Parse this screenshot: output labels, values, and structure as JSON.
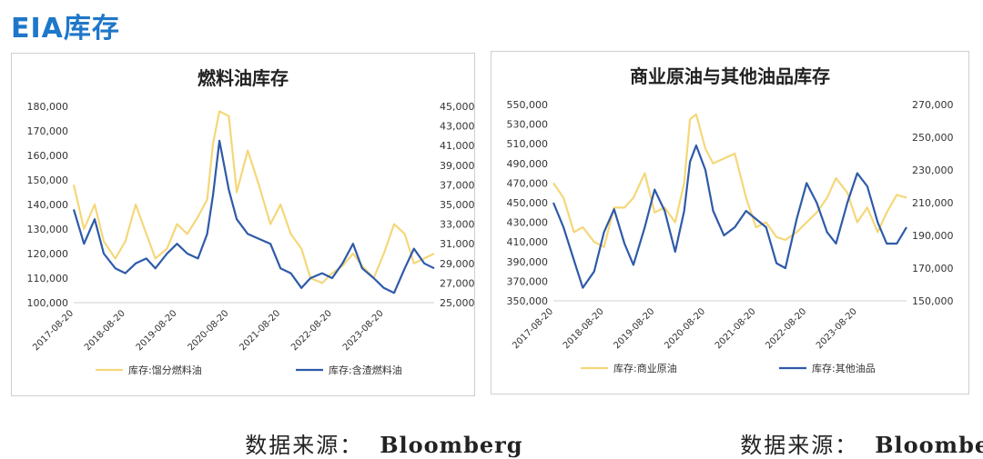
{
  "page": {
    "title": "EIA库存"
  },
  "source_left": {
    "label": "数据来源：",
    "value": "Bloomberg"
  },
  "source_right": {
    "label": "数据来源：",
    "value": "Bloomberg"
  },
  "colors": {
    "title": "#1f77c9",
    "series_yellow": "#f5d77a",
    "series_blue": "#2e5aa8"
  },
  "chart_data": [
    {
      "type": "line",
      "title": "燃料油库存",
      "x_tick_labels": [
        "2017-08-20",
        "2018-08-20",
        "2019-08-20",
        "2020-08-20",
        "2021-08-20",
        "2022-08-20",
        "2023-08-20"
      ],
      "x_range": [
        "2017-08-20",
        "2024-08-10"
      ],
      "y_left": {
        "range": [
          100000,
          180000
        ],
        "ticks": [
          "100,000",
          "110,000",
          "120,000",
          "130,000",
          "140,000",
          "150,000",
          "160,000",
          "170,000",
          "180,000"
        ]
      },
      "y_right": {
        "range": [
          25000,
          45000
        ],
        "ticks": [
          "25,000",
          "27,000",
          "29,000",
          "31,000",
          "33,000",
          "35,000",
          "37,000",
          "39,000",
          "41,000",
          "43,000",
          "45,000"
        ]
      },
      "grid": false,
      "legend_position": "bottom",
      "series": [
        {
          "name": "库存:馏分燃料油",
          "axis": "left",
          "color": "#f5d77a",
          "points": [
            [
              "2017-08-20",
              148000
            ],
            [
              "2017-11-01",
              130000
            ],
            [
              "2018-01-15",
              140000
            ],
            [
              "2018-03-20",
              125000
            ],
            [
              "2018-06-10",
              118000
            ],
            [
              "2018-08-20",
              125000
            ],
            [
              "2018-11-01",
              140000
            ],
            [
              "2019-01-15",
              128000
            ],
            [
              "2019-03-20",
              118000
            ],
            [
              "2019-06-10",
              122000
            ],
            [
              "2019-08-20",
              132000
            ],
            [
              "2019-11-01",
              128000
            ],
            [
              "2020-01-15",
              135000
            ],
            [
              "2020-03-20",
              142000
            ],
            [
              "2020-05-01",
              165000
            ],
            [
              "2020-06-15",
              178000
            ],
            [
              "2020-08-20",
              176000
            ],
            [
              "2020-10-15",
              145000
            ],
            [
              "2021-01-01",
              162000
            ],
            [
              "2021-03-20",
              148000
            ],
            [
              "2021-06-10",
              132000
            ],
            [
              "2021-08-20",
              140000
            ],
            [
              "2021-11-01",
              128000
            ],
            [
              "2022-01-15",
              122000
            ],
            [
              "2022-03-20",
              110000
            ],
            [
              "2022-06-10",
              108000
            ],
            [
              "2022-08-20",
              112000
            ],
            [
              "2022-11-01",
              115000
            ],
            [
              "2023-01-15",
              120000
            ],
            [
              "2023-03-20",
              115000
            ],
            [
              "2023-06-10",
              110000
            ],
            [
              "2023-08-20",
              120000
            ],
            [
              "2023-11-01",
              132000
            ],
            [
              "2024-01-15",
              128000
            ],
            [
              "2024-03-20",
              116000
            ],
            [
              "2024-06-01",
              118000
            ],
            [
              "2024-08-10",
              120000
            ]
          ]
        },
        {
          "name": "库存:含渣燃料油",
          "axis": "right",
          "color": "#2e5aa8",
          "points": [
            [
              "2017-08-20",
              34500
            ],
            [
              "2017-11-01",
              31000
            ],
            [
              "2018-01-15",
              33500
            ],
            [
              "2018-03-20",
              30000
            ],
            [
              "2018-06-10",
              28500
            ],
            [
              "2018-08-20",
              28000
            ],
            [
              "2018-11-01",
              29000
            ],
            [
              "2019-01-15",
              29500
            ],
            [
              "2019-03-20",
              28500
            ],
            [
              "2019-06-10",
              30000
            ],
            [
              "2019-08-20",
              31000
            ],
            [
              "2019-11-01",
              30000
            ],
            [
              "2020-01-15",
              29500
            ],
            [
              "2020-03-20",
              32000
            ],
            [
              "2020-05-01",
              36000
            ],
            [
              "2020-06-15",
              41500
            ],
            [
              "2020-08-20",
              36500
            ],
            [
              "2020-10-15",
              33500
            ],
            [
              "2021-01-01",
              32000
            ],
            [
              "2021-03-20",
              31500
            ],
            [
              "2021-06-10",
              31000
            ],
            [
              "2021-08-20",
              28500
            ],
            [
              "2021-11-01",
              28000
            ],
            [
              "2022-01-15",
              26500
            ],
            [
              "2022-03-20",
              27500
            ],
            [
              "2022-06-10",
              28000
            ],
            [
              "2022-08-20",
              27500
            ],
            [
              "2022-11-01",
              29000
            ],
            [
              "2023-01-15",
              31000
            ],
            [
              "2023-03-20",
              28500
            ],
            [
              "2023-06-10",
              27500
            ],
            [
              "2023-08-20",
              26500
            ],
            [
              "2023-11-01",
              26000
            ],
            [
              "2024-01-15",
              28500
            ],
            [
              "2024-03-20",
              30500
            ],
            [
              "2024-06-01",
              29000
            ],
            [
              "2024-08-10",
              28500
            ]
          ]
        }
      ]
    },
    {
      "type": "line",
      "title": "商业原油与其他油品库存",
      "x_tick_labels": [
        "2017-08-20",
        "2018-08-20",
        "2019-08-20",
        "2020-08-20",
        "2021-08-20",
        "2022-08-20",
        "2023-08-20"
      ],
      "x_range": [
        "2017-08-20",
        "2024-08-10"
      ],
      "y_left": {
        "range": [
          350000,
          550000
        ],
        "ticks": [
          "350,000",
          "370,000",
          "390,000",
          "410,000",
          "430,000",
          "450,000",
          "470,000",
          "490,000",
          "510,000",
          "530,000",
          "550,000"
        ]
      },
      "y_right": {
        "range": [
          150000,
          270000
        ],
        "ticks": [
          "150,000",
          "170,000",
          "190,000",
          "210,000",
          "230,000",
          "250,000",
          "270,000"
        ]
      },
      "grid": false,
      "legend_position": "bottom",
      "series": [
        {
          "name": "库存:商业原油",
          "axis": "left",
          "color": "#f5d77a",
          "points": [
            [
              "2017-08-20",
              470000
            ],
            [
              "2017-11-01",
              455000
            ],
            [
              "2018-01-15",
              420000
            ],
            [
              "2018-03-20",
              425000
            ],
            [
              "2018-06-10",
              410000
            ],
            [
              "2018-08-20",
              405000
            ],
            [
              "2018-11-01",
              445000
            ],
            [
              "2019-01-15",
              445000
            ],
            [
              "2019-03-20",
              455000
            ],
            [
              "2019-06-10",
              480000
            ],
            [
              "2019-08-20",
              440000
            ],
            [
              "2019-11-01",
              445000
            ],
            [
              "2020-01-15",
              430000
            ],
            [
              "2020-03-20",
              470000
            ],
            [
              "2020-05-01",
              535000
            ],
            [
              "2020-06-15",
              540000
            ],
            [
              "2020-08-20",
              505000
            ],
            [
              "2020-10-15",
              490000
            ],
            [
              "2021-01-01",
              495000
            ],
            [
              "2021-03-20",
              500000
            ],
            [
              "2021-06-10",
              455000
            ],
            [
              "2021-08-20",
              425000
            ],
            [
              "2021-11-01",
              430000
            ],
            [
              "2022-01-15",
              415000
            ],
            [
              "2022-03-20",
              412000
            ],
            [
              "2022-06-10",
              420000
            ],
            [
              "2022-08-20",
              430000
            ],
            [
              "2022-11-01",
              440000
            ],
            [
              "2023-01-15",
              455000
            ],
            [
              "2023-03-20",
              475000
            ],
            [
              "2023-06-10",
              460000
            ],
            [
              "2023-08-20",
              430000
            ],
            [
              "2023-11-01",
              445000
            ],
            [
              "2024-01-15",
              420000
            ],
            [
              "2024-03-20",
              440000
            ],
            [
              "2024-06-01",
              458000
            ],
            [
              "2024-08-10",
              455000
            ]
          ]
        },
        {
          "name": "库存:其他油品",
          "axis": "right",
          "color": "#2e5aa8",
          "points": [
            [
              "2017-08-20",
              210000
            ],
            [
              "2017-11-01",
              195000
            ],
            [
              "2018-01-15",
              175000
            ],
            [
              "2018-03-20",
              158000
            ],
            [
              "2018-06-10",
              168000
            ],
            [
              "2018-08-20",
              192000
            ],
            [
              "2018-11-01",
              206000
            ],
            [
              "2019-01-15",
              185000
            ],
            [
              "2019-03-20",
              172000
            ],
            [
              "2019-06-10",
              195000
            ],
            [
              "2019-08-20",
              218000
            ],
            [
              "2019-11-01",
              205000
            ],
            [
              "2020-01-15",
              180000
            ],
            [
              "2020-03-20",
              205000
            ],
            [
              "2020-05-01",
              235000
            ],
            [
              "2020-06-15",
              245000
            ],
            [
              "2020-08-20",
              230000
            ],
            [
              "2020-10-15",
              205000
            ],
            [
              "2021-01-01",
              190000
            ],
            [
              "2021-03-20",
              195000
            ],
            [
              "2021-06-10",
              205000
            ],
            [
              "2021-08-20",
              200000
            ],
            [
              "2021-11-01",
              195000
            ],
            [
              "2022-01-15",
              173000
            ],
            [
              "2022-03-20",
              170000
            ],
            [
              "2022-06-10",
              200000
            ],
            [
              "2022-08-20",
              222000
            ],
            [
              "2022-11-01",
              210000
            ],
            [
              "2023-01-15",
              192000
            ],
            [
              "2023-03-20",
              185000
            ],
            [
              "2023-06-10",
              210000
            ],
            [
              "2023-08-20",
              228000
            ],
            [
              "2023-11-01",
              220000
            ],
            [
              "2024-01-15",
              198000
            ],
            [
              "2024-03-20",
              185000
            ],
            [
              "2024-06-01",
              185000
            ],
            [
              "2024-08-10",
              195000
            ]
          ]
        }
      ]
    }
  ]
}
